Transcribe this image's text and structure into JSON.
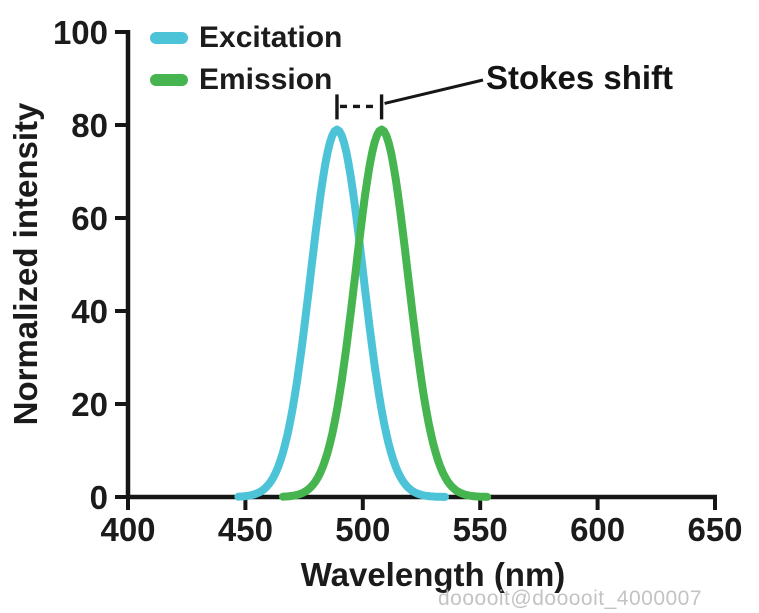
{
  "figure": {
    "watermark": "dooooit@dooooit_4000007"
  },
  "legend": {
    "items": [
      {
        "label": "Excitation",
        "color": "#4dc3d8"
      },
      {
        "label": "Emission",
        "color": "#46b54f"
      }
    ]
  },
  "chart_data": {
    "type": "line",
    "title": "",
    "xlabel": "Wavelength (nm)",
    "ylabel": "Normalized intensity",
    "xlim": [
      400,
      650
    ],
    "ylim": [
      0,
      100
    ],
    "x_ticks": [
      400,
      450,
      500,
      550,
      600,
      650
    ],
    "y_ticks": [
      0,
      20,
      40,
      60,
      80,
      100
    ],
    "grid": false,
    "legend_position": "top-left-inside",
    "series": [
      {
        "name": "Excitation",
        "color": "#4dc3d8",
        "shape": "gaussian",
        "peak_nm": 489,
        "sigma_nm": 11.2,
        "amplitude": 79,
        "draw_range_nm": [
          447,
          535
        ],
        "samples": [
          [
            450,
            0.2
          ],
          [
            455,
            0.8
          ],
          [
            460,
            2.8
          ],
          [
            465,
            7.9
          ],
          [
            470,
            18.7
          ],
          [
            475,
            36.2
          ],
          [
            480,
            57.2
          ],
          [
            485,
            74.1
          ],
          [
            489,
            79
          ],
          [
            495,
            68.4
          ],
          [
            500,
            48.8
          ],
          [
            505,
            28.5
          ],
          [
            510,
            13.6
          ],
          [
            515,
            5.3
          ],
          [
            520,
            1.7
          ],
          [
            525,
            0.5
          ],
          [
            530,
            0.1
          ]
        ]
      },
      {
        "name": "Emission",
        "color": "#46b54f",
        "shape": "gaussian",
        "peak_nm": 508,
        "sigma_nm": 11.2,
        "amplitude": 79,
        "draw_range_nm": [
          466,
          553
        ],
        "samples": [
          [
            469,
            0.2
          ],
          [
            474,
            0.8
          ],
          [
            479,
            2.8
          ],
          [
            484,
            7.9
          ],
          [
            489,
            18.7
          ],
          [
            494,
            36.2
          ],
          [
            499,
            57.2
          ],
          [
            504,
            74.1
          ],
          [
            508,
            79
          ],
          [
            514,
            68.4
          ],
          [
            519,
            48.8
          ],
          [
            524,
            28.5
          ],
          [
            529,
            13.6
          ],
          [
            534,
            5.3
          ],
          [
            539,
            1.7
          ],
          [
            544,
            0.5
          ],
          [
            549,
            0.1
          ]
        ]
      }
    ],
    "annotations": [
      {
        "type": "bracket",
        "label": "Stokes shift",
        "from_nm": 489,
        "to_nm": 508,
        "at_intensity": 84
      }
    ]
  }
}
